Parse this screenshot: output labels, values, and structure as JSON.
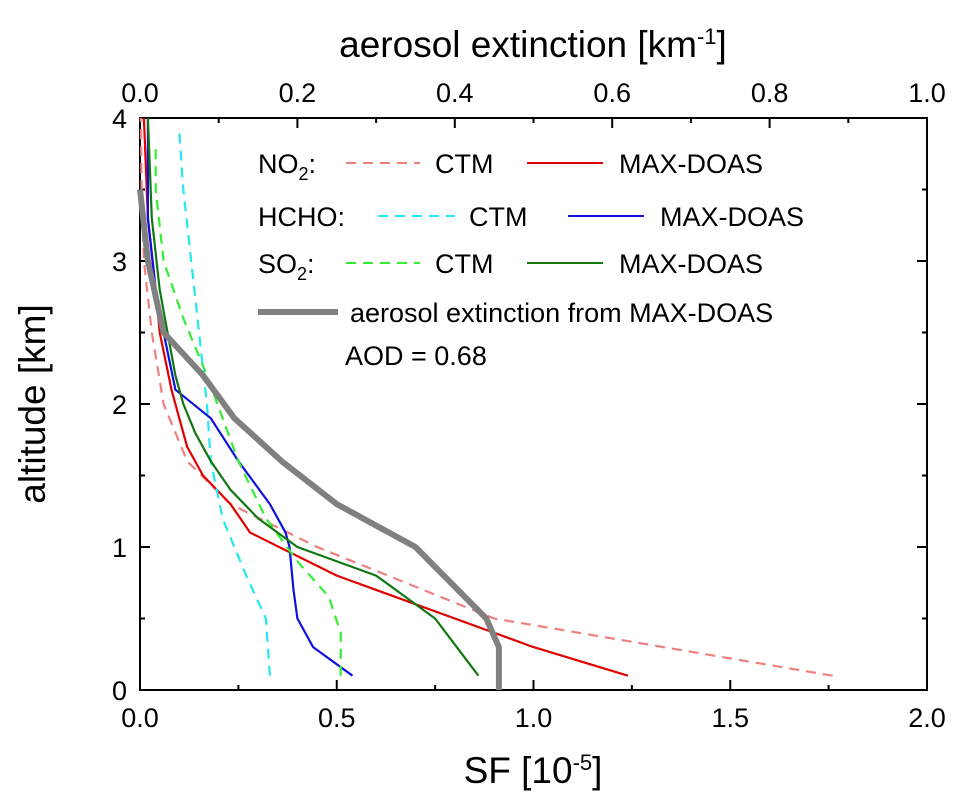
{
  "chart_data": {
    "type": "line",
    "x_axis": {
      "label_main": "SF [10",
      "label_sup": "-5",
      "label_end": "]",
      "lim": [
        0,
        2.0
      ],
      "ticks": [
        "0.0",
        "0.5",
        "1.0",
        "1.5",
        "2.0"
      ],
      "tick_values": [
        0,
        0.5,
        1.0,
        1.5,
        2.0
      ]
    },
    "x2_axis": {
      "label_main": "aerosol extinction [km",
      "label_sup": "-1",
      "label_end": "]",
      "lim": [
        0,
        1.0
      ],
      "ticks": [
        "0.0",
        "0.2",
        "0.4",
        "0.6",
        "0.8",
        "1.0"
      ],
      "tick_values": [
        0,
        0.2,
        0.4,
        0.6,
        0.8,
        1.0
      ]
    },
    "y_axis": {
      "label": "altitude [km]",
      "lim": [
        0,
        4
      ],
      "ticks": [
        "0",
        "1",
        "2",
        "3",
        "4"
      ],
      "tick_values": [
        0,
        1,
        2,
        3,
        4
      ]
    },
    "legend": {
      "no2_label": "NO",
      "no2_sub": "2",
      "no2_colon": ":",
      "hcho_label": "HCHO:",
      "so2_label": "SO",
      "so2_sub": "2",
      "so2_colon": ":",
      "ctm": "CTM",
      "maxdoas": "MAX-DOAS",
      "aerosol": "aerosol extinction from MAX-DOAS",
      "aod": "AOD = 0.68"
    },
    "series": [
      {
        "name": "NO2 CTM",
        "color": "#f08080",
        "dash": true,
        "axis": "x",
        "points": [
          [
            1.76,
            0.1
          ],
          [
            0.9,
            0.5
          ],
          [
            0.45,
            1.0
          ],
          [
            0.23,
            1.3
          ],
          [
            0.12,
            1.6
          ],
          [
            0.06,
            2.0
          ],
          [
            0.03,
            2.5
          ],
          [
            0.01,
            3.0
          ],
          [
            0.004,
            3.5
          ],
          [
            0.002,
            4.0
          ]
        ]
      },
      {
        "name": "NO2 MAX-DOAS",
        "color": "#e00000",
        "dash": false,
        "axis": "x",
        "points": [
          [
            1.24,
            0.1
          ],
          [
            1.0,
            0.3
          ],
          [
            0.8,
            0.5
          ],
          [
            0.5,
            0.8
          ],
          [
            0.28,
            1.1
          ],
          [
            0.23,
            1.3
          ],
          [
            0.16,
            1.5
          ],
          [
            0.12,
            1.7
          ],
          [
            0.1,
            1.9
          ],
          [
            0.08,
            2.1
          ],
          [
            0.05,
            2.5
          ],
          [
            0.04,
            2.8
          ],
          [
            0.02,
            3.3
          ],
          [
            0.01,
            4.0
          ]
        ]
      },
      {
        "name": "HCHO CTM",
        "color": "#22e8f0",
        "dash": true,
        "axis": "x",
        "points": [
          [
            0.33,
            0.1
          ],
          [
            0.32,
            0.5
          ],
          [
            0.27,
            0.8
          ],
          [
            0.21,
            1.2
          ],
          [
            0.18,
            1.6
          ],
          [
            0.17,
            2.0
          ],
          [
            0.15,
            2.5
          ],
          [
            0.13,
            3.0
          ],
          [
            0.11,
            3.5
          ],
          [
            0.1,
            3.9
          ]
        ]
      },
      {
        "name": "HCHO MAX-DOAS",
        "color": "#1010dd",
        "dash": false,
        "axis": "x",
        "points": [
          [
            0.54,
            0.1
          ],
          [
            0.44,
            0.3
          ],
          [
            0.4,
            0.5
          ],
          [
            0.39,
            0.7
          ],
          [
            0.38,
            1.0
          ],
          [
            0.37,
            1.1
          ],
          [
            0.33,
            1.3
          ],
          [
            0.25,
            1.6
          ],
          [
            0.18,
            1.9
          ],
          [
            0.09,
            2.1
          ],
          [
            0.06,
            2.5
          ],
          [
            0.04,
            2.8
          ],
          [
            0.02,
            3.3
          ],
          [
            0.02,
            4.0
          ]
        ]
      },
      {
        "name": "SO2 CTM",
        "color": "#33ee33",
        "dash": true,
        "axis": "x",
        "points": [
          [
            0.51,
            0.1
          ],
          [
            0.51,
            0.4
          ],
          [
            0.48,
            0.65
          ],
          [
            0.4,
            0.9
          ],
          [
            0.32,
            1.2
          ],
          [
            0.25,
            1.6
          ],
          [
            0.17,
            2.2
          ],
          [
            0.11,
            2.6
          ],
          [
            0.06,
            3.0
          ],
          [
            0.04,
            3.5
          ],
          [
            0.04,
            3.8
          ]
        ]
      },
      {
        "name": "SO2 MAX-DOAS",
        "color": "#117711",
        "dash": false,
        "axis": "x",
        "points": [
          [
            0.86,
            0.1
          ],
          [
            0.75,
            0.5
          ],
          [
            0.6,
            0.8
          ],
          [
            0.4,
            1.0
          ],
          [
            0.3,
            1.2
          ],
          [
            0.23,
            1.4
          ],
          [
            0.18,
            1.6
          ],
          [
            0.14,
            1.8
          ],
          [
            0.11,
            2.0
          ],
          [
            0.09,
            2.2
          ],
          [
            0.07,
            2.5
          ],
          [
            0.05,
            2.8
          ],
          [
            0.03,
            3.3
          ],
          [
            0.02,
            4.0
          ]
        ]
      },
      {
        "name": "aerosol extinction from MAX-DOAS",
        "color": "#808080",
        "dash": false,
        "width": 6,
        "axis": "x2",
        "points": [
          [
            0.456,
            0.0
          ],
          [
            0.456,
            0.3
          ],
          [
            0.44,
            0.5
          ],
          [
            0.35,
            1.0
          ],
          [
            0.25,
            1.3
          ],
          [
            0.18,
            1.6
          ],
          [
            0.12,
            1.9
          ],
          [
            0.08,
            2.2
          ],
          [
            0.03,
            2.5
          ],
          [
            0.01,
            3.0
          ],
          [
            0.0,
            3.5
          ]
        ]
      }
    ]
  }
}
